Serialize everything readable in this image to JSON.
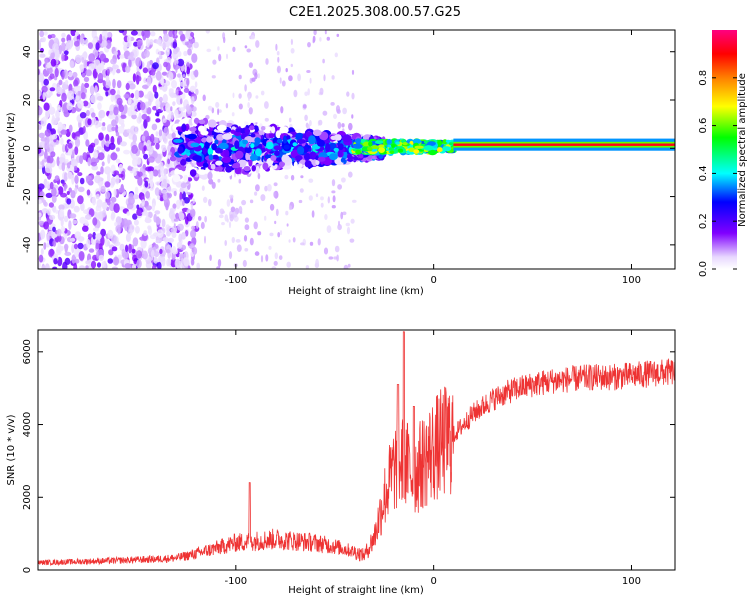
{
  "title": "C2E1.2025.308.00.57.G25",
  "chart_data": [
    {
      "type": "heatmap",
      "title": "",
      "xlabel": "Height of straight line (km)",
      "ylabel": "Frequency (Hz)",
      "xlim": [
        -200,
        122
      ],
      "ylim": [
        -50,
        49
      ],
      "xticks": [
        -100,
        0,
        100
      ],
      "xtick_labels": [
        "-100",
        "0",
        "100"
      ],
      "yticks": [
        -40,
        -20,
        0,
        20,
        40
      ],
      "ytick_labels": [
        "-40",
        "-20",
        "0",
        "20",
        "40"
      ],
      "colorbar": {
        "label": "Normalized spectral amplitude",
        "range": [
          0.0,
          1.0
        ],
        "ticks": [
          0.0,
          0.2,
          0.4,
          0.6,
          0.8
        ],
        "tick_labels": [
          "0.0",
          "0.2",
          "0.4",
          "0.6",
          "0.8"
        ],
        "colors": [
          "#ffffff",
          "#8000ff",
          "#0000ff",
          "#00ffff",
          "#00ff00",
          "#ffff00",
          "#ff8000",
          "#ff0000",
          "#ff0080"
        ]
      },
      "features": [
        {
          "x_range": [
            -200,
            -130
          ],
          "freq_range": [
            -50,
            49
          ],
          "amplitude": 0.12,
          "desc_kind": "scattered"
        },
        {
          "x_range": [
            -130,
            -40
          ],
          "freq_range": [
            -12,
            12
          ],
          "amplitude": 0.35,
          "desc_kind": "band"
        },
        {
          "x_range": [
            -40,
            10
          ],
          "freq_range": [
            -3,
            5
          ],
          "amplitude": 0.7,
          "desc_kind": "narrow"
        },
        {
          "x_range": [
            10,
            122
          ],
          "freq_center": 1.5,
          "freq_width": 2.5,
          "amplitude": 0.95,
          "desc_kind": "line"
        }
      ]
    },
    {
      "type": "line",
      "title": "",
      "xlabel": "Height of straight line (km)",
      "ylabel": "SNR (10 * v/v)",
      "xlim": [
        -200,
        122
      ],
      "ylim": [
        0,
        6600
      ],
      "xticks": [
        -100,
        0,
        100
      ],
      "xtick_labels": [
        "-100",
        "0",
        "100"
      ],
      "yticks": [
        0,
        2000,
        4000,
        6000
      ],
      "ytick_labels": [
        "0",
        "2000",
        "4000",
        "6000"
      ],
      "series": [
        {
          "name": "SNR",
          "color": "#ee3333",
          "x": [
            -200,
            -180,
            -160,
            -140,
            -130,
            -120,
            -110,
            -100,
            -90,
            -80,
            -70,
            -60,
            -50,
            -40,
            -35,
            -30,
            -25,
            -20,
            -15,
            -10,
            -5,
            0,
            10,
            20,
            30,
            40,
            50,
            60,
            70,
            80,
            90,
            100,
            110,
            122
          ],
          "y": [
            200,
            230,
            260,
            300,
            330,
            450,
            600,
            750,
            800,
            850,
            800,
            750,
            650,
            500,
            400,
            900,
            2000,
            2800,
            3000,
            2600,
            3000,
            3300,
            3700,
            4300,
            4700,
            4950,
            5100,
            5200,
            5250,
            5300,
            5300,
            5350,
            5400,
            5450
          ],
          "spikes": [
            {
              "x": -93,
              "y": 2400
            },
            {
              "x": -15,
              "y": 6550
            },
            {
              "x": -18,
              "y": 5100
            },
            {
              "x": -10,
              "y": 4500
            }
          ]
        }
      ]
    }
  ]
}
